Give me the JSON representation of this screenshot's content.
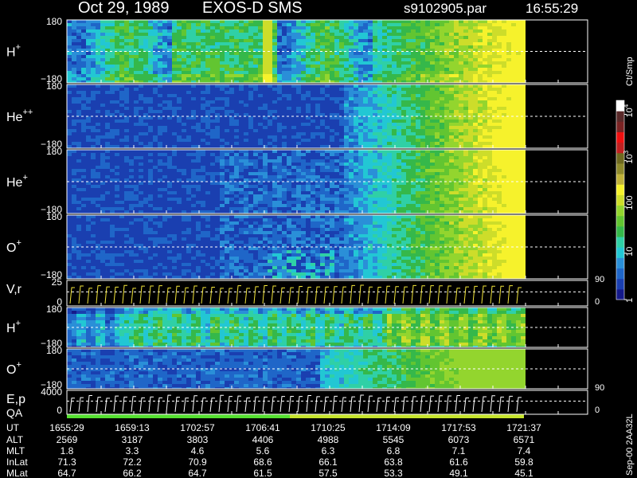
{
  "header": {
    "date": "Oct 29, 1989",
    "mission": "EXOS-D SMS",
    "file": "s9102905.par",
    "time": "16:55:29"
  },
  "colorbar": {
    "label": "Ct/Smp",
    "ticks": [
      {
        "text": "1",
        "value": 1
      },
      {
        "text": "10",
        "value": 10
      },
      {
        "text": "100",
        "value": 100
      },
      {
        "text": "10",
        "sup": "3",
        "value": 1000
      },
      {
        "text": "10",
        "sup": "4",
        "value": 10000
      }
    ],
    "range": [
      1,
      20000
    ],
    "scale": "log",
    "colors": [
      "#151a8a",
      "#1a3fb0",
      "#1f66c8",
      "#2a8fd8",
      "#22c7d4",
      "#2fd0a6",
      "#35b84a",
      "#62c531",
      "#93d52e",
      "#cddd2a",
      "#f6f22c",
      "#c0b23a",
      "#8f8a2c",
      "#6f6a20",
      "#c02020",
      "#ee1010",
      "#7a2424",
      "#5a2a2a",
      "#ffffff"
    ]
  },
  "chart_data": [
    {
      "type": "heatmap",
      "label": "H",
      "sup": "+",
      "ylim": [
        -180,
        180
      ],
      "yticks": [
        "180",
        "−180"
      ],
      "reference_line": 0
    },
    {
      "type": "heatmap",
      "label": "He",
      "sup": "++",
      "ylim": [
        -180,
        180
      ],
      "yticks": [
        "180",
        "−180"
      ],
      "reference_line": 0
    },
    {
      "type": "heatmap",
      "label": "He",
      "sup": "+",
      "ylim": [
        -180,
        180
      ],
      "yticks": [
        "180",
        "−180"
      ],
      "reference_line": 0
    },
    {
      "type": "heatmap",
      "label": "O",
      "sup": "+",
      "ylim": [
        -180,
        180
      ],
      "yticks": [
        "180",
        "−180"
      ],
      "reference_line": 0
    },
    {
      "type": "line",
      "label": "V,r",
      "ylim": [
        0,
        25
      ],
      "yticks": [
        "25",
        "0"
      ],
      "right_ticks": [
        "90",
        "0"
      ]
    },
    {
      "type": "heatmap",
      "label": "H",
      "sup": "+",
      "ylim": [
        -180,
        180
      ],
      "yticks": [
        "180",
        "−180"
      ],
      "reference_line": 0
    },
    {
      "type": "heatmap",
      "label": "O",
      "sup": "+",
      "ylim": [
        -180,
        180
      ],
      "yticks": [
        "180",
        "−180"
      ],
      "reference_line": 0
    },
    {
      "type": "line",
      "label": "E,p",
      "ylim": [
        0,
        4000
      ],
      "yticks": [
        "4000",
        "0"
      ],
      "right_ticks": [
        "90",
        "0"
      ]
    }
  ],
  "qa": {
    "label": "QA",
    "good_color": "#55e030"
  },
  "ephemeris": {
    "labels": [
      "UT",
      "ALT",
      "MLT",
      "InLat",
      "MLat"
    ],
    "columns": [
      [
        "1655:29",
        "2569",
        "1.8",
        "71.3",
        "64.7"
      ],
      [
        "1659:13",
        "3187",
        "3.3",
        "72.2",
        "66.2"
      ],
      [
        "1702:57",
        "3803",
        "4.6",
        "70.9",
        "64.7"
      ],
      [
        "1706:41",
        "4406",
        "5.6",
        "68.6",
        "61.5"
      ],
      [
        "1710:25",
        "4988",
        "6.3",
        "66.1",
        "57.5"
      ],
      [
        "1714:09",
        "5545",
        "6.8",
        "63.8",
        "53.3"
      ],
      [
        "1717:53",
        "6073",
        "7.1",
        "61.6",
        "49.1"
      ],
      [
        "1721:37",
        "6571",
        "7.4",
        "59.8",
        "45.1"
      ]
    ]
  },
  "footer": {
    "version": "Sep-00 2AA32L"
  }
}
